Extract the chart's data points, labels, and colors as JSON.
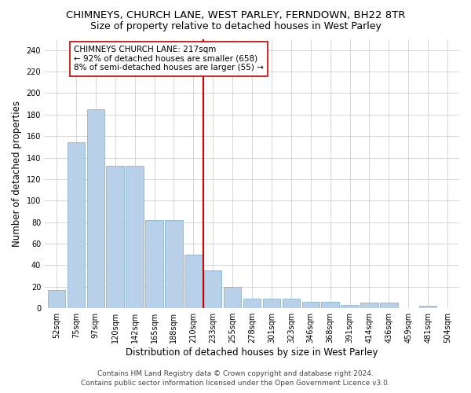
{
  "title": "CHIMNEYS, CHURCH LANE, WEST PARLEY, FERNDOWN, BH22 8TR",
  "subtitle": "Size of property relative to detached houses in West Parley",
  "xlabel": "Distribution of detached houses by size in West Parley",
  "ylabel": "Number of detached properties",
  "footer1": "Contains HM Land Registry data © Crown copyright and database right 2024.",
  "footer2": "Contains public sector information licensed under the Open Government Licence v3.0.",
  "categories": [
    "52sqm",
    "75sqm",
    "97sqm",
    "120sqm",
    "142sqm",
    "165sqm",
    "188sqm",
    "210sqm",
    "233sqm",
    "255sqm",
    "278sqm",
    "301sqm",
    "323sqm",
    "346sqm",
    "368sqm",
    "391sqm",
    "414sqm",
    "436sqm",
    "459sqm",
    "481sqm",
    "504sqm"
  ],
  "values": [
    17,
    154,
    185,
    132,
    132,
    82,
    82,
    50,
    35,
    20,
    9,
    9,
    9,
    6,
    6,
    3,
    5,
    5,
    0,
    2,
    0
  ],
  "bar_color": "#b8d0e8",
  "bar_edge_color": "#7aaac8",
  "vline_color": "#cc0000",
  "annotation_text": "CHIMNEYS CHURCH LANE: 217sqm\n← 92% of detached houses are smaller (658)\n8% of semi-detached houses are larger (55) →",
  "annotation_box_color": "#ffffff",
  "annotation_box_edge": "#cc0000",
  "ylim": [
    0,
    250
  ],
  "yticks": [
    0,
    20,
    40,
    60,
    80,
    100,
    120,
    140,
    160,
    180,
    200,
    220,
    240
  ],
  "background_color": "#ffffff",
  "grid_color": "#d0d0d0",
  "title_fontsize": 9.5,
  "subtitle_fontsize": 9,
  "axis_label_fontsize": 8.5,
  "tick_fontsize": 7,
  "footer_fontsize": 6.5
}
